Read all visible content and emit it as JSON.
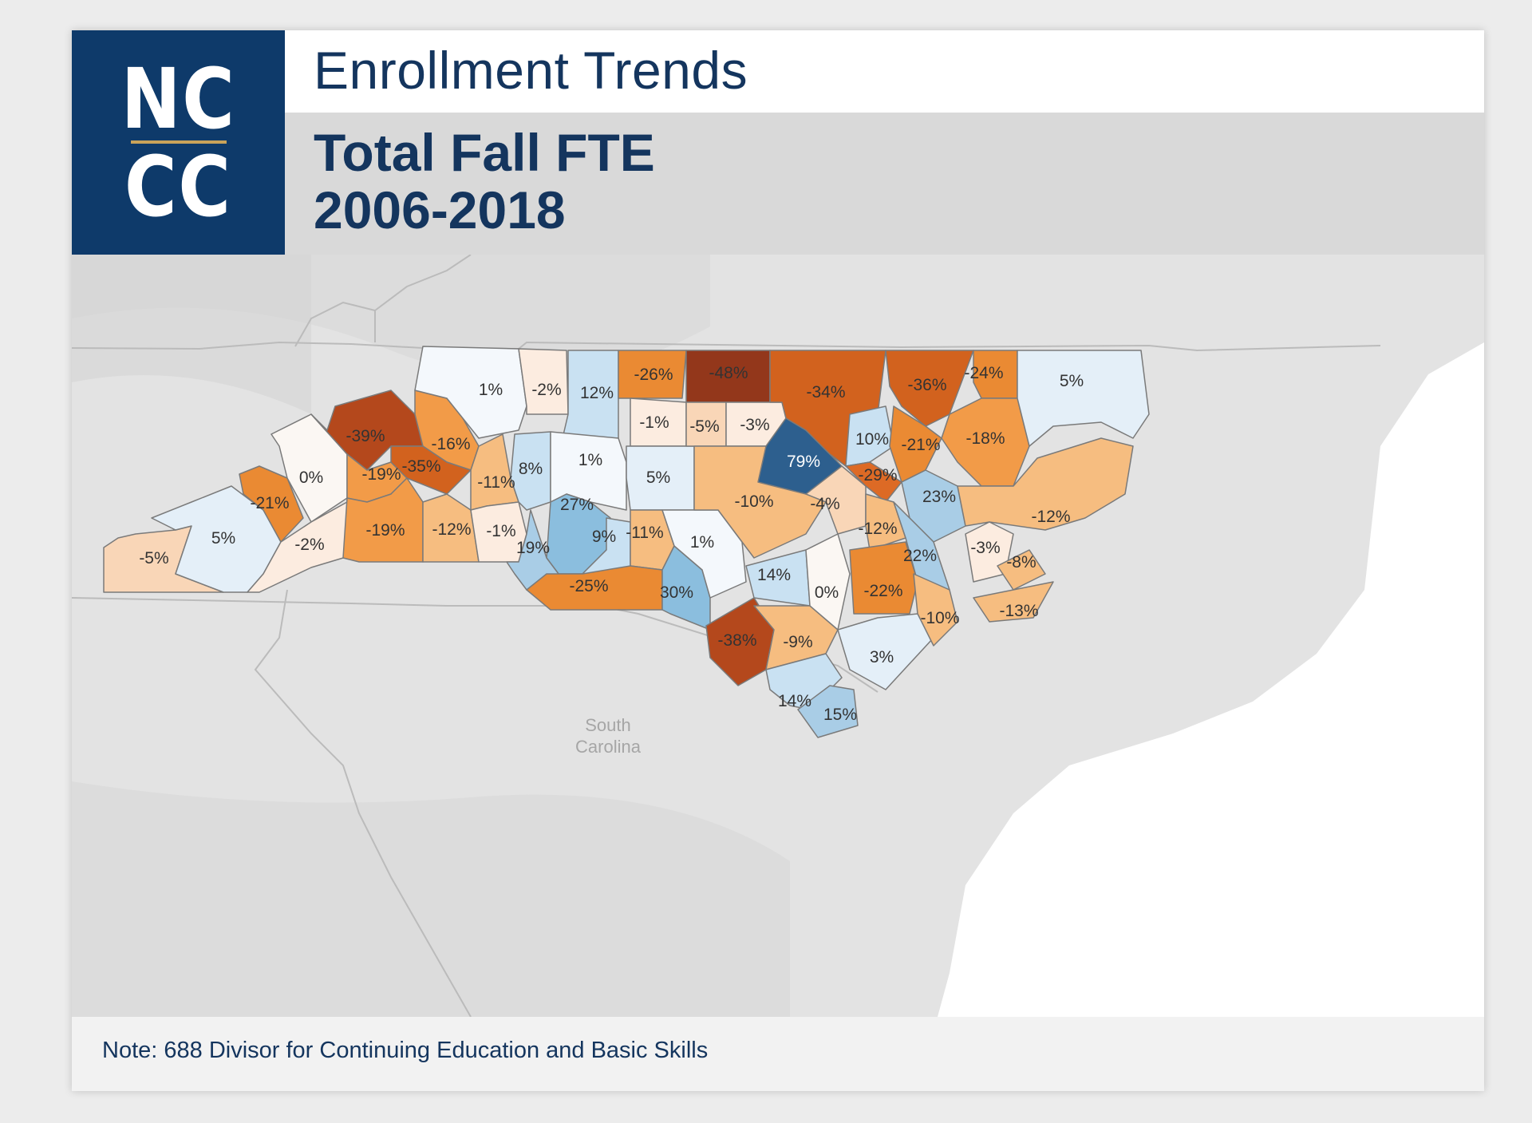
{
  "logo": {
    "line1": "NC",
    "line2": "CC"
  },
  "header": {
    "title": "Enrollment Trends",
    "subtitle_line1": "Total Fall FTE",
    "subtitle_line2": "2006-2018"
  },
  "map": {
    "place_labels": [
      "South",
      "Carolina"
    ],
    "counties": [
      {
        "id": "c01",
        "value": -5,
        "label": "-5%"
      },
      {
        "id": "c02",
        "value": 5,
        "label": "5%"
      },
      {
        "id": "c03",
        "value": -21,
        "label": "-21%"
      },
      {
        "id": "c04",
        "value": 0,
        "label": "0%"
      },
      {
        "id": "c05",
        "value": -2,
        "label": "-2%"
      },
      {
        "id": "c06",
        "value": -39,
        "label": "-39%"
      },
      {
        "id": "c07",
        "value": -16,
        "label": "-16%"
      },
      {
        "id": "c08",
        "value": -19,
        "label": "-19%"
      },
      {
        "id": "c09",
        "value": -35,
        "label": "-35%"
      },
      {
        "id": "c10",
        "value": -19,
        "label": "-19%"
      },
      {
        "id": "c11",
        "value": -12,
        "label": "-12%"
      },
      {
        "id": "c12",
        "value": -11,
        "label": "-11%"
      },
      {
        "id": "c13",
        "value": -1,
        "label": "-1%"
      },
      {
        "id": "c14",
        "value": 1,
        "label": "1%"
      },
      {
        "id": "c15",
        "value": -2,
        "label": "-2%"
      },
      {
        "id": "c16",
        "value": 12,
        "label": "12%"
      },
      {
        "id": "c17",
        "value": 8,
        "label": "8%"
      },
      {
        "id": "c18",
        "value": 1,
        "label": "1%"
      },
      {
        "id": "c19",
        "value": 27,
        "label": "27%"
      },
      {
        "id": "c20",
        "value": 19,
        "label": "19%"
      },
      {
        "id": "c21",
        "value": 9,
        "label": "9%"
      },
      {
        "id": "c22",
        "value": -26,
        "label": "-26%"
      },
      {
        "id": "c23",
        "value": -1,
        "label": "-1%"
      },
      {
        "id": "c24",
        "value": 5,
        "label": "5%"
      },
      {
        "id": "c25",
        "value": -11,
        "label": "-11%"
      },
      {
        "id": "c26",
        "value": -25,
        "label": "-25%"
      },
      {
        "id": "c27",
        "value": 30,
        "label": "30%"
      },
      {
        "id": "c28",
        "value": 1,
        "label": "1%"
      },
      {
        "id": "c29",
        "value": -48,
        "label": "-48%"
      },
      {
        "id": "c30",
        "value": -5,
        "label": "-5%"
      },
      {
        "id": "c31",
        "value": -3,
        "label": "-3%"
      },
      {
        "id": "c32",
        "value": -10,
        "label": "-10%"
      },
      {
        "id": "c33",
        "value": 79,
        "label": "79%"
      },
      {
        "id": "c34",
        "value": -34,
        "label": "-34%"
      },
      {
        "id": "c35",
        "value": -38,
        "label": "-38%"
      },
      {
        "id": "c36",
        "value": 14,
        "label": "14%"
      },
      {
        "id": "c37",
        "value": -9,
        "label": "-9%"
      },
      {
        "id": "c38",
        "value": 0,
        "label": "0%"
      },
      {
        "id": "c39",
        "value": -4,
        "label": "-4%"
      },
      {
        "id": "c40",
        "value": 10,
        "label": "10%"
      },
      {
        "id": "c41",
        "value": -29,
        "label": "-29%"
      },
      {
        "id": "c42",
        "value": -12,
        "label": "-12%"
      },
      {
        "id": "c43",
        "value": -22,
        "label": "-22%"
      },
      {
        "id": "c44",
        "value": 3,
        "label": "3%"
      },
      {
        "id": "c45",
        "value": 14,
        "label": "14%"
      },
      {
        "id": "c46",
        "value": 15,
        "label": "15%"
      },
      {
        "id": "c47",
        "value": -36,
        "label": "-36%"
      },
      {
        "id": "c48",
        "value": -21,
        "label": "-21%"
      },
      {
        "id": "c49",
        "value": 23,
        "label": "23%"
      },
      {
        "id": "c50",
        "value": 22,
        "label": "22%"
      },
      {
        "id": "c51",
        "value": -10,
        "label": "-10%"
      },
      {
        "id": "c52",
        "value": -24,
        "label": "-24%"
      },
      {
        "id": "c53",
        "value": -18,
        "label": "-18%"
      },
      {
        "id": "c54",
        "value": 5,
        "label": "5%"
      },
      {
        "id": "c55",
        "value": -12,
        "label": "-12%"
      },
      {
        "id": "c56",
        "value": -3,
        "label": "-3%"
      },
      {
        "id": "c57",
        "value": -8,
        "label": "-8%"
      },
      {
        "id": "c58",
        "value": -13,
        "label": "-13%"
      }
    ]
  },
  "footer": {
    "note": "Note: 688 Divisor for Continuing Education and Basic Skills"
  }
}
